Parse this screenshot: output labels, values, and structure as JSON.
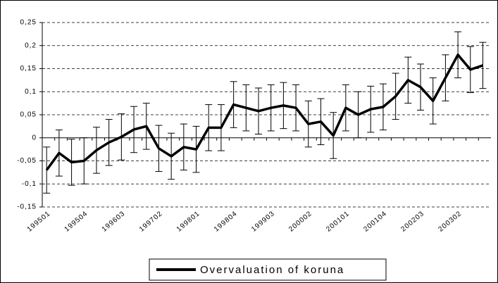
{
  "chart_data": {
    "type": "line",
    "categories": [
      "199501",
      null,
      null,
      "199504",
      null,
      null,
      "199603",
      null,
      null,
      "199702",
      null,
      null,
      "199801",
      null,
      null,
      "199804",
      null,
      null,
      "199903",
      null,
      null,
      "200002",
      null,
      null,
      "200101",
      null,
      null,
      "200104",
      null,
      null,
      "200203",
      null,
      null,
      "200302",
      null,
      null
    ],
    "series": [
      {
        "name": "Overvaluation of koruna",
        "color": "#000000",
        "values": [
          -0.07,
          -0.033,
          -0.053,
          -0.05,
          -0.027,
          -0.01,
          0.002,
          0.018,
          0.025,
          -0.023,
          -0.04,
          -0.02,
          -0.025,
          0.022,
          0.022,
          0.072,
          0.065,
          0.058,
          0.065,
          0.07,
          0.065,
          0.03,
          0.035,
          0.005,
          0.065,
          0.05,
          0.062,
          0.067,
          0.09,
          0.125,
          0.11,
          0.08,
          0.13,
          0.18,
          0.148,
          0.157
        ],
        "error": 0.05
      }
    ],
    "ylim": [
      -0.15,
      0.25
    ],
    "yticks": [
      {
        "value": -0.15,
        "label": "-0,15"
      },
      {
        "value": -0.1,
        "label": "-0,1"
      },
      {
        "value": -0.05,
        "label": "-0,05"
      },
      0,
      {
        "value": 0.05,
        "label": "0,05"
      },
      {
        "value": 0.1,
        "label": "0,1"
      },
      {
        "value": 0.15,
        "label": "0,15"
      },
      {
        "value": 0.2,
        "label": "0,2"
      },
      {
        "value": 0.25,
        "label": "0,25"
      }
    ],
    "grid": true
  }
}
